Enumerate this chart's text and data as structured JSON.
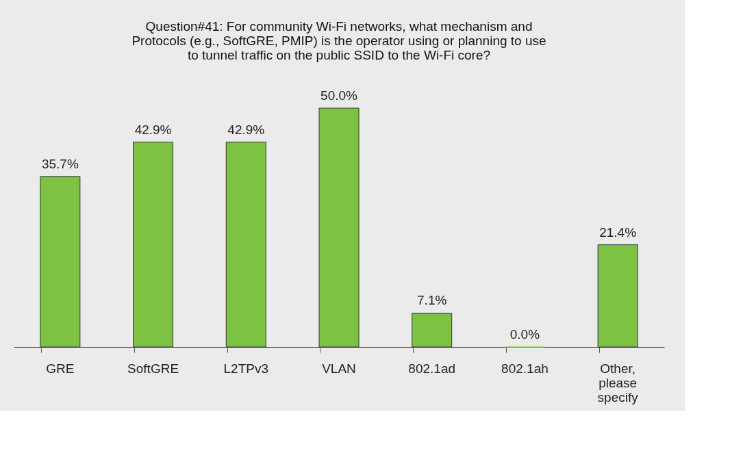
{
  "chart_data": {
    "type": "bar",
    "title": "Question#41: For community Wi-Fi networks, what mechanism and\nProtocols (e.g., SoftGRE, PMIP) is the operator using or planning to use\nto tunnel traffic on the public SSID to the Wi-Fi core?",
    "categories": [
      "GRE",
      "SoftGRE",
      "L2TPv3",
      "VLAN",
      "802.1ad",
      "802.1ah",
      "Other, please specify"
    ],
    "values": [
      35.7,
      42.9,
      42.9,
      50.0,
      7.1,
      0.0,
      21.4
    ],
    "value_labels": [
      "35.7%",
      "42.9%",
      "42.9%",
      "50.0%",
      "7.1%",
      "0.0%",
      "21.4%"
    ],
    "color": "#7dc242",
    "grid": false
  }
}
